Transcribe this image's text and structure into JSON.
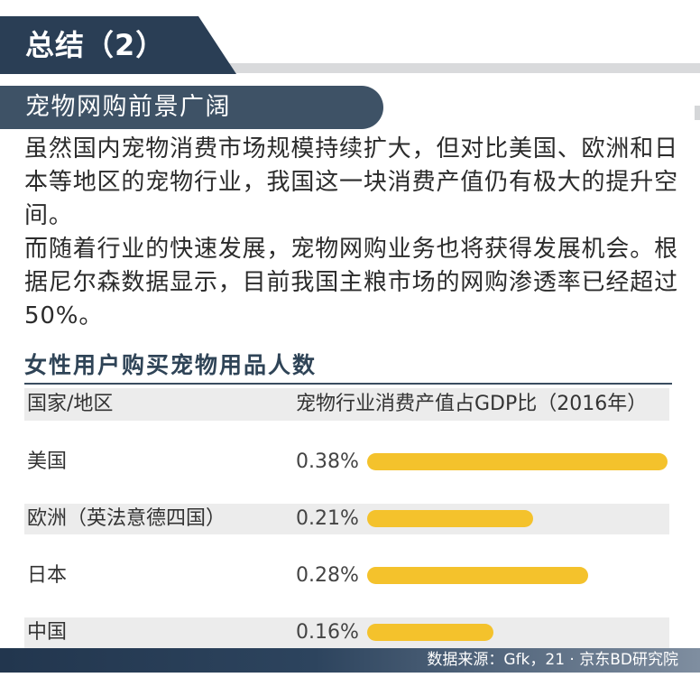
{
  "header": {
    "title": "总结（2）"
  },
  "section": {
    "title": "宠物网购前景广阔"
  },
  "body": {
    "paragraphs": [
      "虽然国内宠物消费市场规模持续扩大，但对比美国、欧洲和日本等地区的宠物行业，我国这一块消费产值仍有极大的提升空间。",
      "而随着行业的快速发展，宠物网购业务也将获得发展机会。根据尼尔森数据显示，目前我国主粮市场的网购渗透率已经超过50%。"
    ]
  },
  "chart_data": {
    "type": "bar",
    "orientation": "horizontal",
    "title": "女性用户购买宠物用品人数",
    "category_header": "国家/地区",
    "value_header": "宠物行业消费产值占GDP比（2016年）",
    "categories": [
      "美国",
      "欧洲（英法意德四国）",
      "日本",
      "中国"
    ],
    "values": [
      0.38,
      0.21,
      0.28,
      0.16
    ],
    "value_labels": [
      "0.38%",
      "0.21%",
      "0.28%",
      "0.16%"
    ],
    "unit": "%",
    "xlim": [
      0,
      0.38
    ],
    "grid": false,
    "bar_color": "#f4c22c"
  },
  "footer": {
    "source": "数据来源：Gfk，21 · 京东BD研究院"
  },
  "colors": {
    "navy": "#2a3e55",
    "slate": "#3e5266",
    "title": "#2f4457",
    "stripe": "#ececec",
    "bar": "#f4c22c"
  }
}
